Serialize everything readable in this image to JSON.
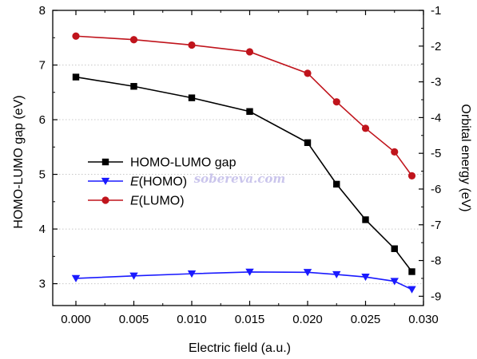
{
  "chart_data": {
    "type": "line",
    "xlabel": "Electric field (a.u.)",
    "ylabel_left": "HOMO-LUMO gap (eV)",
    "ylabel_right": "Orbital energy (eV)",
    "xlim": [
      -0.002,
      0.03
    ],
    "ylim_left": [
      2.6,
      8.0
    ],
    "ylim_right": [
      -9.26,
      -1.0
    ],
    "x_ticks": [
      "0.000",
      "0.005",
      "0.010",
      "0.015",
      "0.020",
      "0.025",
      "0.030"
    ],
    "x_tick_values": [
      0.0,
      0.005,
      0.01,
      0.015,
      0.02,
      0.025,
      0.03
    ],
    "y_left_ticks": [
      "3",
      "4",
      "5",
      "6",
      "7",
      "8"
    ],
    "y_left_tick_values": [
      3,
      4,
      5,
      6,
      7,
      8
    ],
    "y_right_ticks": [
      "-1",
      "-2",
      "-3",
      "-4",
      "-5",
      "-6",
      "-7",
      "-8",
      "-9"
    ],
    "y_right_tick_values": [
      -1,
      -2,
      -3,
      -4,
      -5,
      -6,
      -7,
      -8,
      -9
    ],
    "grid": "horizontal-dotted",
    "legend_position": "middle-left",
    "series": [
      {
        "name": "HOMO-LUMO gap",
        "axis": "left",
        "color": "#000000",
        "marker": "square",
        "x": [
          0.0,
          0.005,
          0.01,
          0.015,
          0.02,
          0.0225,
          0.025,
          0.0275,
          0.029
        ],
        "y": [
          6.78,
          6.61,
          6.4,
          6.15,
          5.58,
          4.82,
          4.17,
          3.64,
          3.22
        ]
      },
      {
        "name": "(HOMO)",
        "name_prefix": "E",
        "axis": "right",
        "color": "#1a1aff",
        "marker": "triangle-down",
        "x": [
          0.0,
          0.005,
          0.01,
          0.015,
          0.02,
          0.0225,
          0.025,
          0.0275,
          0.029
        ],
        "y": [
          -8.5,
          -8.43,
          -8.37,
          -8.32,
          -8.33,
          -8.39,
          -8.46,
          -8.58,
          -8.81
        ]
      },
      {
        "name": "(LUMO)",
        "name_prefix": "E",
        "axis": "right",
        "color": "#c0141c",
        "marker": "circle",
        "x": [
          0.0,
          0.005,
          0.01,
          0.015,
          0.02,
          0.0225,
          0.025,
          0.0275,
          0.029
        ],
        "y": [
          -1.72,
          -1.82,
          -1.97,
          -2.16,
          -2.76,
          -3.56,
          -4.3,
          -4.96,
          -5.63
        ]
      }
    ]
  },
  "watermark": "sobereva.com"
}
